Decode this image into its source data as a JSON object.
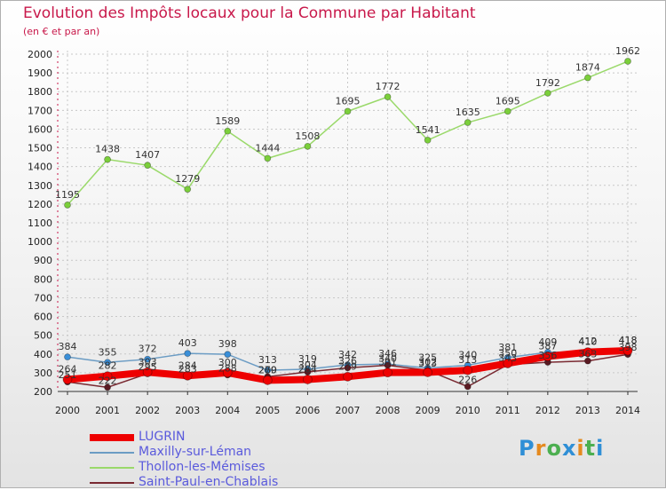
{
  "header": {
    "title": "Evolution des Impôts locaux pour la Commune par Habitant",
    "subtitle": "(en € et par an)"
  },
  "logo": {
    "letters": [
      "P",
      "r",
      "o",
      "x",
      "i",
      "t",
      "i"
    ],
    "colors": [
      "#2f8fd6",
      "#e58a1f",
      "#4caf50",
      "#2f8fd6",
      "#e58a1f",
      "#4caf50",
      "#2f8fd6"
    ]
  },
  "chart_data": {
    "type": "line",
    "title": "Evolution des Impôts locaux pour la Commune par Habitant",
    "subtitle": "(en € et par an)",
    "xlabel": "",
    "ylabel": "",
    "x": [
      "2000",
      "2001",
      "2002",
      "2003",
      "2004",
      "2005",
      "2006",
      "2007",
      "2008",
      "2009",
      "2010",
      "2011",
      "2012",
      "2013",
      "2014"
    ],
    "ylim": [
      200,
      2000
    ],
    "yticks": [
      "200",
      "300",
      "400",
      "500",
      "600",
      "700",
      "800",
      "900",
      "1000",
      "1100",
      "1200",
      "1300",
      "1400",
      "1500",
      "1600",
      "1700",
      "1800",
      "1900",
      "2000"
    ],
    "grid": true,
    "legend_position": "bottom-left",
    "series": [
      {
        "name": "LUGRIN",
        "color": "#ee0000",
        "marker": "#ee0000",
        "width": 8,
        "values": [
          264,
          282,
          303,
          284,
          300,
          260,
          264,
          279,
          301,
          302,
          313,
          350,
          387,
          410,
          418
        ],
        "labels": [
          "264",
          "282",
          "303",
          "284",
          "300",
          "260",
          "264",
          "279",
          "301",
          "302",
          "313",
          "350",
          "387",
          "410",
          "418"
        ]
      },
      {
        "name": "Maxilly-sur-Léman",
        "color": "#6b9cc4",
        "marker": "#3a8fd8",
        "width": 1.5,
        "values": [
          384,
          355,
          372,
          403,
          398,
          313,
          319,
          342,
          346,
          325,
          340,
          381,
          409,
          412,
          418
        ],
        "labels": [
          "384",
          "355",
          "372",
          "403",
          "398",
          "313",
          "319",
          "342",
          "346",
          "325",
          "340",
          "381",
          "409",
          "412",
          "418"
        ]
      },
      {
        "name": "Thollon-les-Mémises",
        "color": "#9ad96a",
        "marker": "#7bcf3b",
        "width": 1.5,
        "values": [
          1195,
          1438,
          1407,
          1279,
          1589,
          1444,
          1508,
          1695,
          1772,
          1541,
          1635,
          1695,
          1792,
          1874,
          1962
        ],
        "labels": [
          "1195",
          "1438",
          "1407",
          "1279",
          "1589",
          "1444",
          "1508",
          "1695",
          "1772",
          "1541",
          "1635",
          "1695",
          "1792",
          "1874",
          "1962"
        ]
      },
      {
        "name": "Saint-Paul-en-Chablais",
        "color": "#7a2a32",
        "marker": "#5a1a22",
        "width": 1.5,
        "values": [
          251,
          222,
          295,
          283,
          288,
          279,
          304,
          326,
          340,
          313,
          226,
          343,
          356,
          363,
          398
        ],
        "labels": [
          "251",
          "222",
          "295",
          "283",
          "288",
          "279",
          "304",
          "326",
          "340",
          "313",
          "226",
          "343",
          "356",
          "363",
          "398"
        ]
      }
    ]
  }
}
